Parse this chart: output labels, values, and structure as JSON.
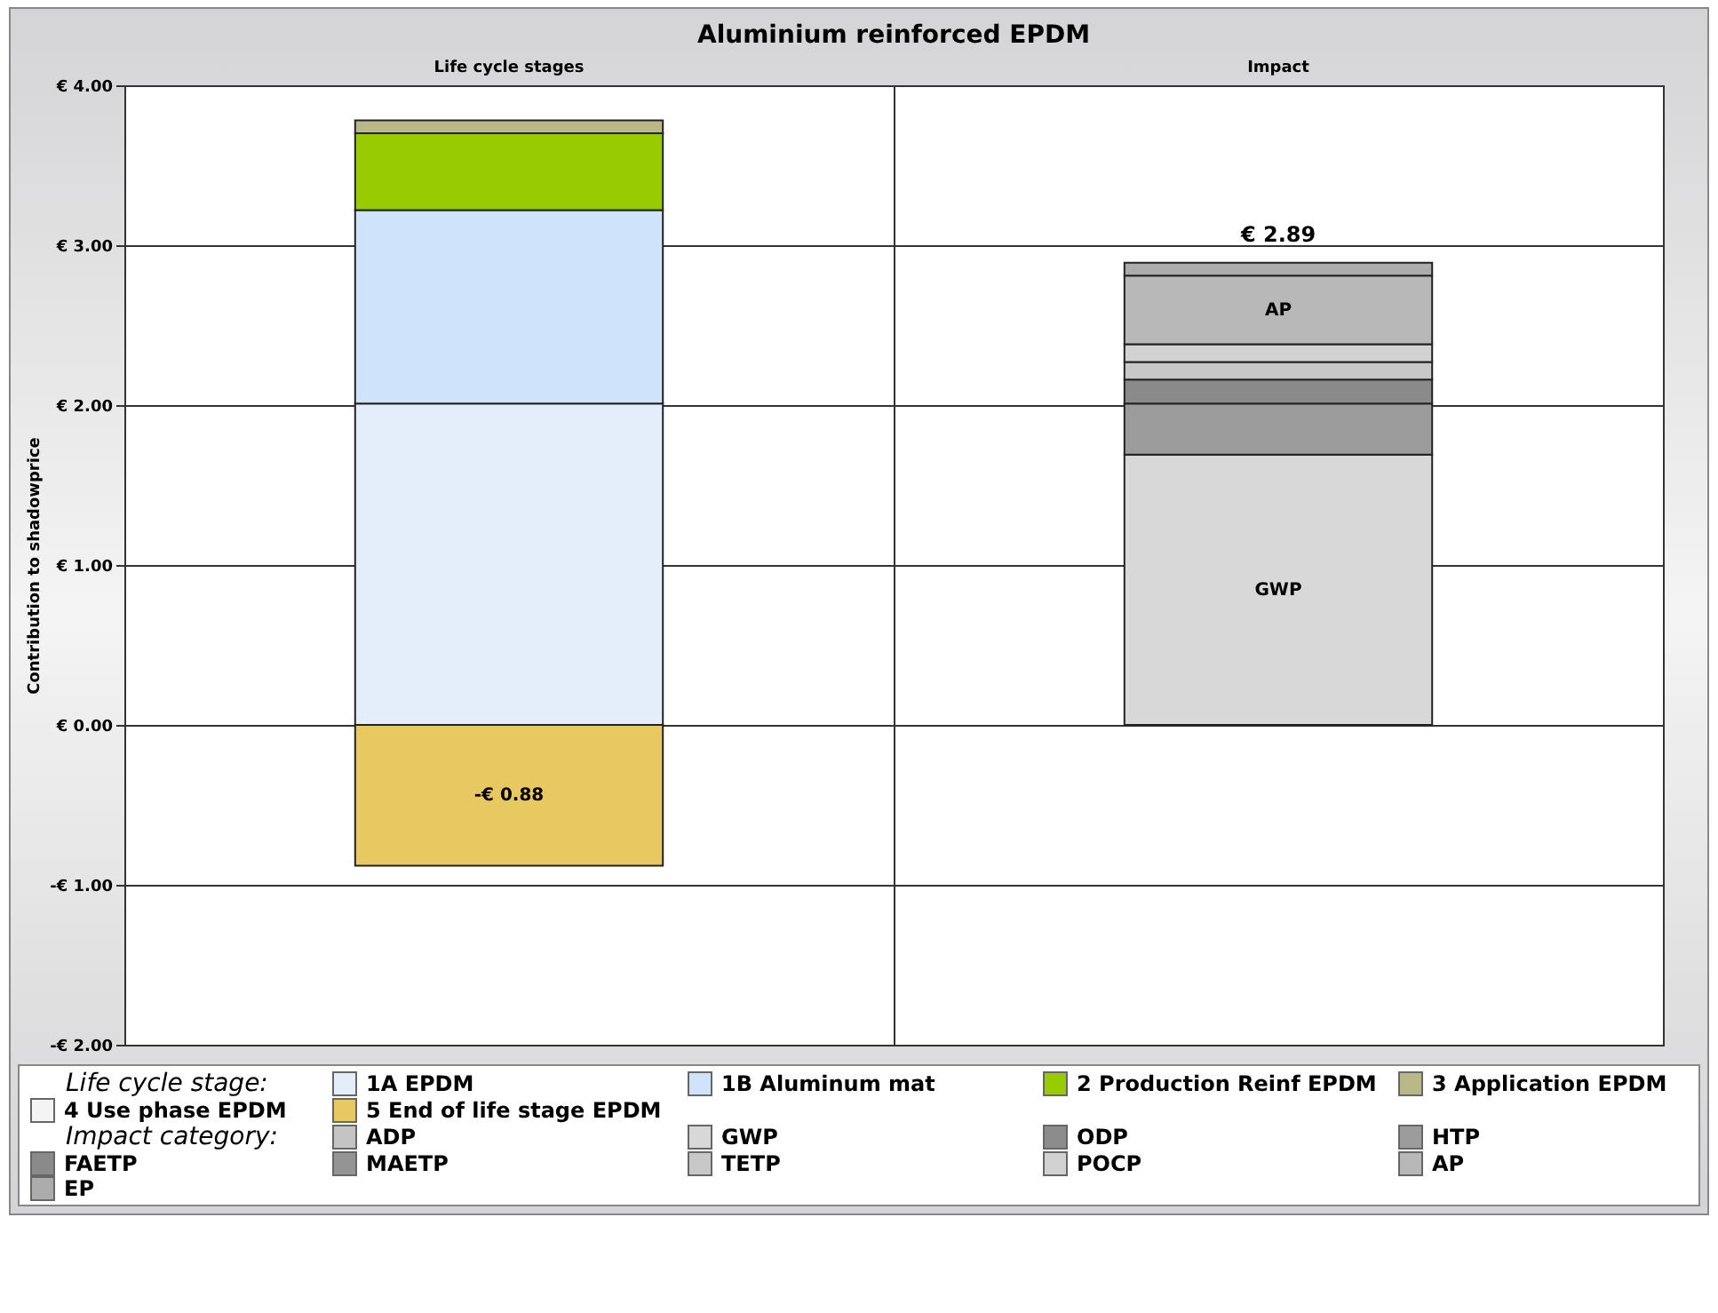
{
  "chart_data": {
    "type": "bar",
    "title": "Aluminium reinforced EPDM",
    "ylabel": "Contribution to shadowprice",
    "stacked": true,
    "categories": [
      "Life cycle stages",
      "Impact"
    ],
    "series": [
      {
        "name": "1A EPDM",
        "color": "#e4edfa",
        "values": [
          2.01,
          null
        ]
      },
      {
        "name": "1B Aluminum mat",
        "color": "#cfe4fb",
        "values": [
          1.21,
          null
        ]
      },
      {
        "name": "2 Production Reinf EPDM",
        "color": "#99cc00",
        "values": [
          0.48,
          null
        ]
      },
      {
        "name": "3 Application EPDM",
        "color": "#b8b888",
        "values": [
          0.08,
          null
        ]
      },
      {
        "name": "4 Use phase EPDM",
        "color": "#f4f4f4",
        "values": [
          null,
          null
        ]
      },
      {
        "name": "5 End of life stage EPDM",
        "color": "#e8c860",
        "values": [
          -0.88,
          null
        ],
        "value_labels": [
          "-€ 0.88",
          null
        ]
      },
      {
        "name": "ADP",
        "color": "#c4c4c4",
        "values": [
          null,
          null
        ]
      },
      {
        "name": "GWP",
        "color": "#d8d8d8",
        "values": [
          null,
          1.69
        ],
        "value_labels": [
          null,
          "GWP"
        ]
      },
      {
        "name": "ODP",
        "color": "#8c8c8c",
        "values": [
          null,
          null
        ]
      },
      {
        "name": "HTP",
        "color": "#9c9c9c",
        "values": [
          null,
          0.32
        ]
      },
      {
        "name": "FAETP",
        "color": "#8a8a8a",
        "values": [
          null,
          0.15
        ]
      },
      {
        "name": "MAETP",
        "color": "#949494",
        "values": [
          null,
          null
        ]
      },
      {
        "name": "TETP",
        "color": "#c8c8c8",
        "values": [
          null,
          0.11
        ]
      },
      {
        "name": "POCP",
        "color": "#d2d2d2",
        "values": [
          null,
          0.11
        ]
      },
      {
        "name": "AP",
        "color": "#b8b8b8",
        "values": [
          null,
          0.43
        ],
        "value_labels": [
          null,
          "AP"
        ]
      },
      {
        "name": "EP",
        "color": "#acacac",
        "values": [
          null,
          0.08
        ]
      }
    ],
    "totals": [
      null,
      "€ 2.89"
    ],
    "ylim": [
      -2,
      4
    ],
    "yticks": [
      {
        "value": -2,
        "label": "-€ 2.00"
      },
      {
        "value": -1,
        "label": "-€ 1.00"
      },
      {
        "value": 0,
        "label": "€ 0.00"
      },
      {
        "value": 1,
        "label": "€ 1.00"
      },
      {
        "value": 2,
        "label": "€ 2.00"
      },
      {
        "value": 3,
        "label": "€ 3.00"
      },
      {
        "value": 4,
        "label": "€ 4.00"
      }
    ],
    "grid": true,
    "legend": "bottom",
    "annotations": [
      "Life cycle stage:",
      "Impact category:"
    ]
  }
}
